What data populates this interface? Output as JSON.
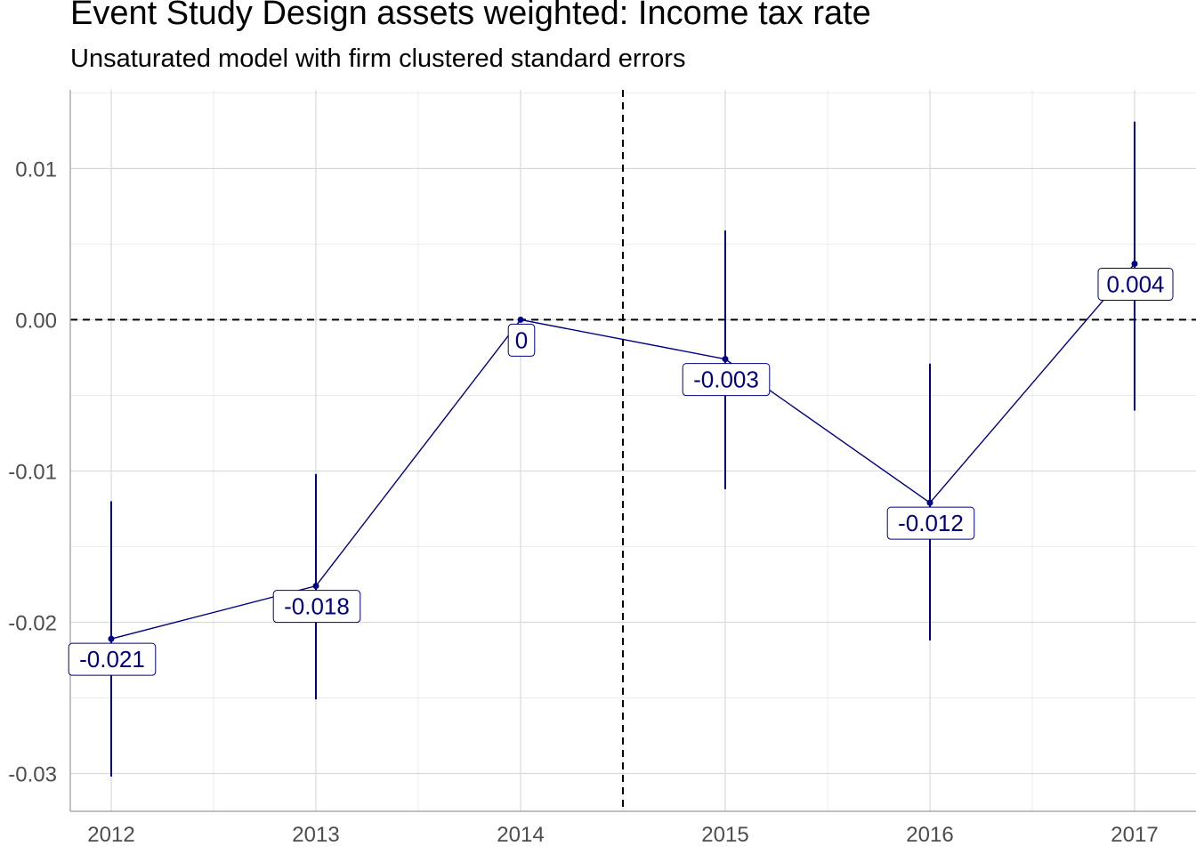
{
  "chart_data": {
    "type": "line",
    "title": "Event Study Design assets weighted: Income tax rate",
    "subtitle": "Unsaturated model with firm clustered standard errors",
    "xlabel": "",
    "ylabel": "",
    "x": [
      2012,
      2013,
      2014,
      2015,
      2016,
      2017
    ],
    "x_tick_labels": [
      "2012",
      "2013",
      "2014",
      "2015",
      "2016",
      "2017"
    ],
    "y_tick_values": [
      -0.03,
      -0.02,
      -0.01,
      0.0,
      0.01
    ],
    "y_tick_labels": [
      "-0.03",
      "-0.02",
      "-0.01",
      "0.00",
      "0.01"
    ],
    "xlim": [
      2011.8,
      2017.3
    ],
    "ylim": [
      -0.0325,
      0.0152
    ],
    "grid": true,
    "series": [
      {
        "values": [
          -0.0211,
          -0.0176,
          0.0,
          -0.0026,
          -0.0121,
          0.0037
        ],
        "ci_lower": [
          -0.0302,
          -0.0251,
          0.0,
          -0.0112,
          -0.0212,
          -0.006
        ],
        "ci_upper": [
          -0.012,
          -0.0102,
          0.0,
          0.0059,
          -0.0029,
          0.0131
        ],
        "labels": [
          "-0.021",
          "-0.018",
          "0",
          "-0.003",
          "-0.012",
          "0.004"
        ],
        "color": "#000080"
      }
    ],
    "reference_lines": {
      "horizontal_y": 0.0,
      "vertical_x": 2014.5
    },
    "label_box_color": "#000080"
  }
}
